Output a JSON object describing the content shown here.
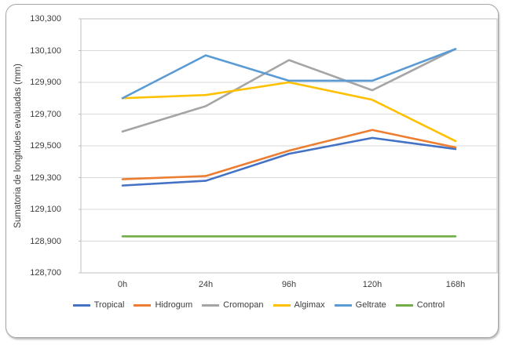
{
  "chart_data": {
    "type": "line",
    "title": "",
    "xlabel": "",
    "ylabel": "Sumatoria de longitudes evaluadas (mm)",
    "categories": [
      "0h",
      "24h",
      "96h",
      "120h",
      "168h"
    ],
    "series": [
      {
        "name": "Tropical",
        "color": "#4472C4",
        "values": [
          129250,
          129280,
          129450,
          129550,
          129480
        ]
      },
      {
        "name": "Hidrogum",
        "color": "#ED7D31",
        "values": [
          129290,
          129310,
          129470,
          129600,
          129490
        ]
      },
      {
        "name": "Cromopan",
        "color": "#A5A5A5",
        "values": [
          129590,
          129750,
          130040,
          129850,
          130110
        ]
      },
      {
        "name": "Algimax",
        "color": "#FFC000",
        "values": [
          129800,
          129820,
          129900,
          129790,
          129530
        ]
      },
      {
        "name": "Geltrate",
        "color": "#5B9BD5",
        "values": [
          129800,
          130070,
          129910,
          129910,
          130110
        ]
      },
      {
        "name": "Control",
        "color": "#70AD47",
        "values": [
          128930,
          128930,
          128930,
          128930,
          128930
        ]
      }
    ],
    "ylim": [
      128700,
      130300
    ],
    "ytick_step": 200,
    "ytick_labels": [
      "130,300",
      "130,100",
      "129,900",
      "129,700",
      "129,500",
      "129,300",
      "129,100",
      "128,900",
      "128,700"
    ],
    "grid": "horizontal",
    "legend_position": "bottom",
    "colors": {
      "gridline": "#d9d9d9",
      "plot_border": "#bfbfbf",
      "text": "#3d3d3d",
      "frame_border": "#a6a6a6"
    }
  }
}
